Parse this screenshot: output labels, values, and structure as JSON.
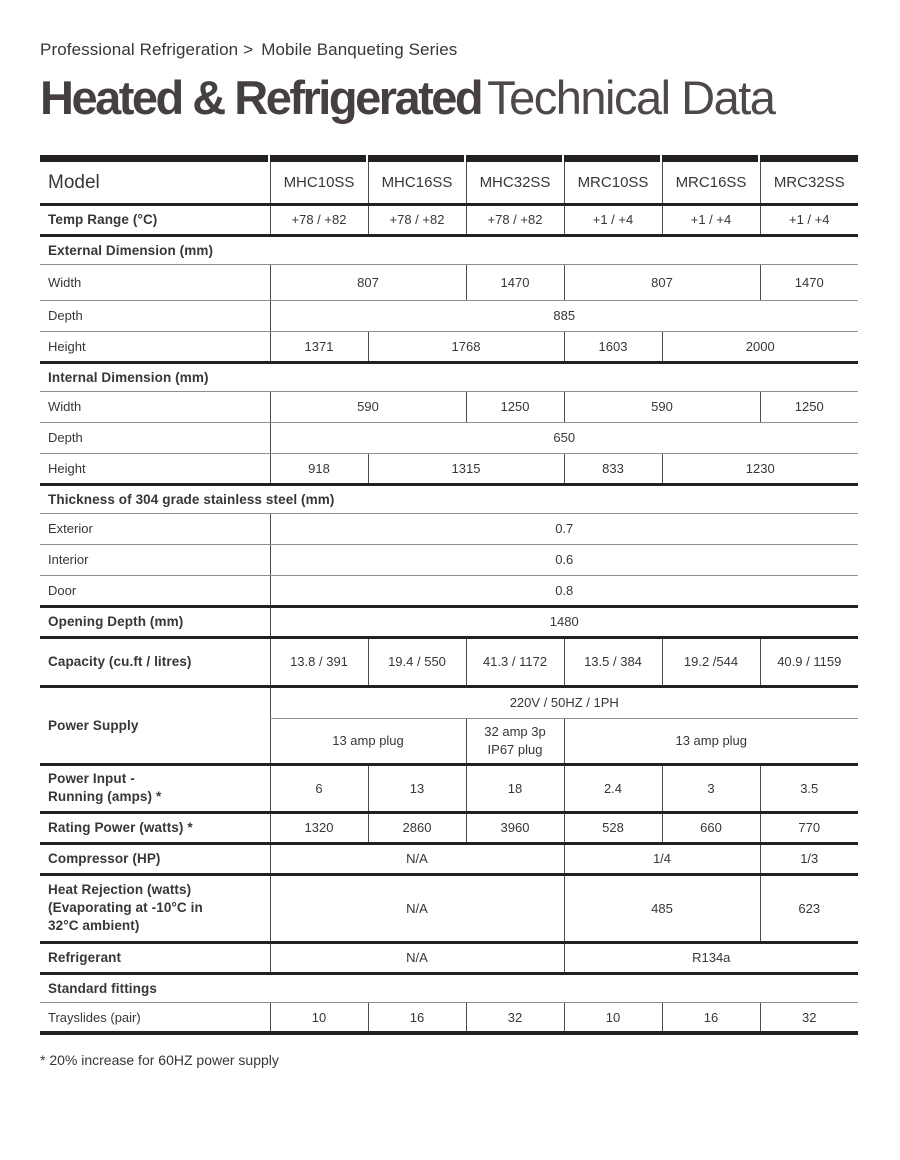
{
  "breadcrumb": {
    "parent": "Professional Refrigeration",
    "separator": ">",
    "current": "Mobile Banqueting Series"
  },
  "title": {
    "primary": "Heated & Refrigerated",
    "secondary": "Technical Data"
  },
  "table": {
    "header": {
      "label": "Model",
      "models": [
        "MHC10SS",
        "MHC16SS",
        "MHC32SS",
        "MRC10SS",
        "MRC16SS",
        "MRC32SS"
      ]
    },
    "temp_range": {
      "label": "Temp Range (°C)",
      "values": [
        "+78 / +82",
        "+78 / +82",
        "+78 / +82",
        "+1 / +4",
        "+1 / +4",
        "+1 / +4"
      ]
    },
    "external_dimension": {
      "section": "External Dimension (mm)",
      "width": {
        "label": "Width",
        "values": [
          "807",
          "1470",
          "807",
          "1470"
        ]
      },
      "depth": {
        "label": "Depth",
        "value": "885"
      },
      "height": {
        "label": "Height",
        "values": [
          "1371",
          "1768",
          "1603",
          "2000"
        ]
      }
    },
    "internal_dimension": {
      "section": "Internal Dimension (mm)",
      "width": {
        "label": "Width",
        "values": [
          "590",
          "1250",
          "590",
          "1250"
        ]
      },
      "depth": {
        "label": "Depth",
        "value": "650"
      },
      "height": {
        "label": "Height",
        "values": [
          "918",
          "1315",
          "833",
          "1230"
        ]
      }
    },
    "thickness": {
      "section": "Thickness of 304 grade stainless steel (mm)",
      "exterior": {
        "label": "Exterior",
        "value": "0.7"
      },
      "interior": {
        "label": "Interior",
        "value": "0.6"
      },
      "door": {
        "label": "Door",
        "value": "0.8"
      }
    },
    "opening_depth": {
      "label": "Opening Depth (mm)",
      "value": "1480"
    },
    "capacity": {
      "label": "Capacity (cu.ft / litres)",
      "values": [
        "13.8 / 391",
        "19.4 / 550",
        "41.3 / 1172",
        "13.5 / 384",
        "19.2 /544",
        "40.9 / 1159"
      ]
    },
    "power_supply": {
      "label": "Power Supply",
      "voltage": "220V / 50HZ / 1PH",
      "plugs": [
        "13 amp plug",
        "32 amp 3p\nIP67 plug",
        "13 amp plug"
      ]
    },
    "power_input": {
      "label": "Power Input -\nRunning (amps) *",
      "values": [
        "6",
        "13",
        "18",
        "2.4",
        "3",
        "3.5"
      ]
    },
    "rating_power": {
      "label": "Rating Power (watts) *",
      "values": [
        "1320",
        "2860",
        "3960",
        "528",
        "660",
        "770"
      ]
    },
    "compressor": {
      "label": "Compressor (HP)",
      "values": [
        "N/A",
        "1/4",
        "1/3"
      ]
    },
    "heat_rejection": {
      "label": "Heat Rejection (watts)\n(Evaporating at -10°C in\n32°C ambient)",
      "values": [
        "N/A",
        "485",
        "623"
      ]
    },
    "refrigerant": {
      "label": "Refrigerant",
      "values": [
        "N/A",
        "R134a"
      ]
    },
    "standard_fittings": {
      "section": "Standard fittings",
      "trayslides": {
        "label": "Trayslides (pair)",
        "values": [
          "10",
          "16",
          "32",
          "10",
          "16",
          "32"
        ]
      }
    }
  },
  "footnote": "* 20% increase for 60HZ power supply"
}
